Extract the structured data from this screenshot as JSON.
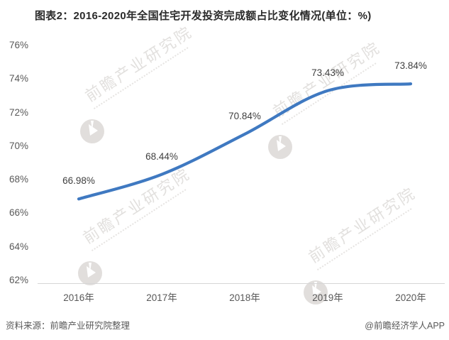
{
  "header": {
    "title": "图表2：2016-2020年全国住宅开发投资完成额占比变化情况(单位：%)"
  },
  "chart_data": {
    "type": "line",
    "title": "图表2：2016-2020年全国住宅开发投资完成额占比变化情况(单位：%)",
    "categories": [
      "2016年",
      "2017年",
      "2018年",
      "2019年",
      "2020年"
    ],
    "values": [
      66.98,
      68.44,
      70.84,
      73.43,
      73.84
    ],
    "point_labels": [
      "66.98%",
      "68.44%",
      "70.84%",
      "73.43%",
      "73.84%"
    ],
    "ylim": [
      62,
      76
    ],
    "ytick_step": 2,
    "ytick_labels": [
      "62%",
      "64%",
      "66%",
      "68%",
      "70%",
      "72%",
      "74%",
      "76%"
    ],
    "xlabel": "",
    "ylabel": "",
    "grid": false,
    "legend": "none",
    "line_style": "smooth",
    "line_color": "#3F79C1"
  },
  "watermark": {
    "text": "前瞻产业研究院"
  },
  "footer": {
    "source": "资料来源：前瞻产业研究院整理",
    "credit": "@前瞻经济学人APP"
  }
}
